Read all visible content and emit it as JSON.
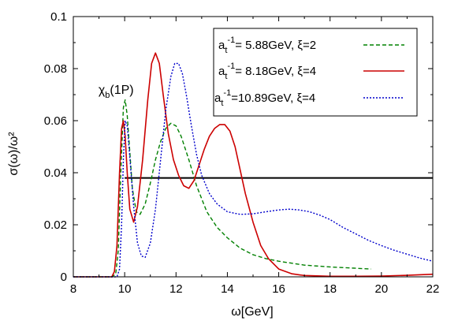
{
  "chart_data": {
    "type": "line",
    "xlabel": "ω[GeV]",
    "ylabel": "σ(ω)/ω²",
    "xlim": [
      8,
      22
    ],
    "ylim": [
      0,
      0.1
    ],
    "xticks": [
      "8",
      "10",
      "12",
      "14",
      "16",
      "18",
      "20",
      "22"
    ],
    "yticks": [
      "0",
      "0.02",
      "0.04",
      "0.06",
      "0.08",
      "0.1"
    ],
    "grid": false,
    "legend": {
      "placement": "top-right",
      "entries": [
        {
          "prefix": "a",
          "sub": "t",
          "sup": "-1",
          "suffix": "= 5.88GeV, ξ=2"
        },
        {
          "prefix": "a",
          "sub": "t",
          "sup": "-1",
          "suffix": "= 8.18GeV, ξ=4"
        },
        {
          "prefix": "a",
          "sub": "t",
          "sup": "-1",
          "suffix": "=10.89GeV, ξ=4"
        }
      ]
    },
    "annotation": {
      "main": "χ",
      "sub": "b",
      "rest": "(1P)",
      "x": 9.9,
      "y": 0.0715
    },
    "hline": {
      "y": 0.038,
      "x_start": 10.0,
      "x_end": 22,
      "color": "#000000"
    },
    "series": [
      {
        "color": "#008000",
        "style": "dashed",
        "x": [
          8,
          9.5,
          9.65,
          9.75,
          9.85,
          9.95,
          10.02,
          10.1,
          10.2,
          10.3,
          10.45,
          10.6,
          10.8,
          11.0,
          11.2,
          11.4,
          11.6,
          11.8,
          12.0,
          12.2,
          12.5,
          12.8,
          13.2,
          13.6,
          14.0,
          14.5,
          15.0,
          15.5,
          16.0,
          17.0,
          18.0,
          19.0,
          19.6
        ],
        "y": [
          0,
          0,
          0.001,
          0.01,
          0.04,
          0.065,
          0.068,
          0.062,
          0.048,
          0.034,
          0.025,
          0.024,
          0.028,
          0.036,
          0.045,
          0.052,
          0.057,
          0.059,
          0.058,
          0.054,
          0.045,
          0.035,
          0.025,
          0.019,
          0.015,
          0.011,
          0.0085,
          0.007,
          0.006,
          0.0045,
          0.0038,
          0.0033,
          0.003
        ]
      },
      {
        "color": "#cc0000",
        "style": "solid",
        "x": [
          8,
          9.5,
          9.6,
          9.7,
          9.8,
          9.88,
          9.95,
          10.02,
          10.1,
          10.2,
          10.35,
          10.5,
          10.7,
          10.9,
          11.05,
          11.2,
          11.35,
          11.5,
          11.7,
          11.9,
          12.1,
          12.3,
          12.5,
          12.7,
          12.9,
          13.1,
          13.3,
          13.5,
          13.7,
          13.9,
          14.1,
          14.3,
          14.5,
          14.7,
          15.0,
          15.3,
          15.6,
          16.0,
          16.5,
          17.0,
          18.0,
          19.0,
          20.0,
          21.0,
          22.0
        ],
        "y": [
          0,
          0,
          0.002,
          0.012,
          0.04,
          0.057,
          0.06,
          0.054,
          0.04,
          0.026,
          0.021,
          0.027,
          0.045,
          0.068,
          0.082,
          0.086,
          0.082,
          0.07,
          0.055,
          0.045,
          0.039,
          0.035,
          0.034,
          0.037,
          0.043,
          0.049,
          0.054,
          0.057,
          0.0585,
          0.0585,
          0.056,
          0.05,
          0.041,
          0.032,
          0.021,
          0.012,
          0.007,
          0.003,
          0.0012,
          0.0005,
          0.0002,
          0.0002,
          0.0003,
          0.0006,
          0.001
        ]
      },
      {
        "color": "#0000cc",
        "style": "dotted",
        "x": [
          8,
          9.7,
          9.8,
          9.88,
          9.95,
          10.02,
          10.1,
          10.2,
          10.35,
          10.5,
          10.65,
          10.8,
          11.0,
          11.2,
          11.4,
          11.6,
          11.8,
          11.95,
          12.1,
          12.25,
          12.4,
          12.6,
          12.8,
          13.0,
          13.3,
          13.6,
          14.0,
          14.5,
          15.0,
          15.5,
          16.0,
          16.4,
          16.8,
          17.2,
          17.6,
          18.0,
          18.5,
          19.0,
          19.5,
          20.0,
          20.5,
          21.0,
          21.5,
          22.0
        ],
        "y": [
          0,
          0,
          0.003,
          0.02,
          0.045,
          0.06,
          0.058,
          0.046,
          0.027,
          0.013,
          0.008,
          0.0075,
          0.013,
          0.026,
          0.045,
          0.064,
          0.077,
          0.082,
          0.082,
          0.078,
          0.07,
          0.058,
          0.047,
          0.039,
          0.032,
          0.028,
          0.025,
          0.024,
          0.0242,
          0.025,
          0.0257,
          0.026,
          0.0257,
          0.025,
          0.0237,
          0.022,
          0.019,
          0.0165,
          0.014,
          0.012,
          0.0102,
          0.0087,
          0.0072,
          0.006
        ]
      }
    ]
  }
}
